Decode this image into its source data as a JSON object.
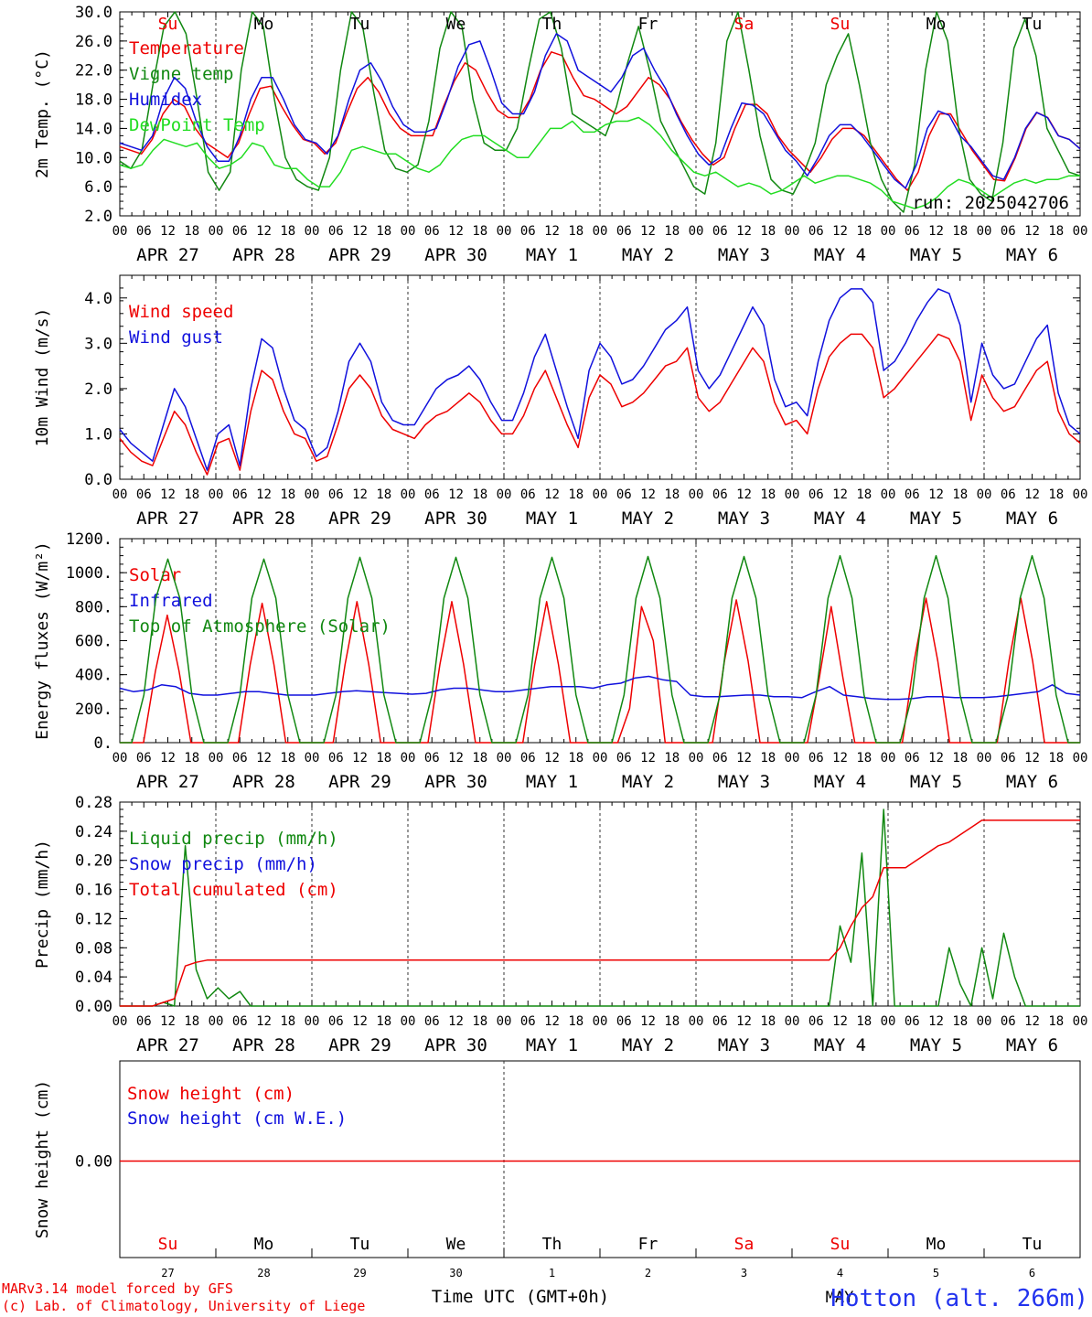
{
  "colors": {
    "red": "#ee0000",
    "green": "#118811",
    "blue": "#1111dd",
    "lime": "#22dd22",
    "grey": "#555555"
  },
  "chart_data": [
    {
      "type": "line",
      "id": "temp",
      "ylabel": "2m Temp. (°C)",
      "ylim": [
        2,
        30
      ],
      "yticks": [
        "2.0",
        "6.0",
        "10.0",
        "14.0",
        "18.0",
        "22.0",
        "26.0",
        "30.0"
      ],
      "run_label": "run: 2025042706",
      "series": [
        {
          "name": "Temperature",
          "color": "red",
          "values": [
            11.5,
            11,
            10.5,
            12.5,
            16,
            18,
            17,
            14,
            12,
            11,
            10,
            12,
            16,
            19.5,
            19.8,
            17,
            14.5,
            12.5,
            12,
            10.5,
            12,
            16,
            19.5,
            21,
            19,
            16,
            14,
            13,
            13,
            13,
            17,
            20.5,
            23,
            22,
            19,
            16.5,
            15.5,
            15.5,
            18,
            22,
            24.5,
            24,
            21,
            18.5,
            18,
            17,
            16,
            17,
            19,
            21,
            20,
            18,
            15,
            12.5,
            10.5,
            9,
            10,
            14,
            17.3,
            17.3,
            16,
            13,
            11,
            9.5,
            8,
            10,
            12.5,
            14,
            14,
            13,
            11,
            9,
            7,
            5.5,
            8,
            13,
            16,
            16,
            13.5,
            11,
            9,
            7,
            6.8,
            10,
            14,
            16.2,
            15.5,
            13,
            12.5,
            11.2
          ]
        },
        {
          "name": "Vigne temp",
          "color": "green",
          "values": [
            9.5,
            8.5,
            11,
            20,
            28,
            30,
            27,
            18,
            8,
            5.5,
            8,
            22,
            30,
            28,
            18,
            10,
            7,
            6,
            5.5,
            10,
            22,
            30,
            28,
            19,
            11,
            8.5,
            8,
            9,
            15,
            25,
            30,
            28,
            18,
            12,
            11,
            11,
            14,
            22,
            29,
            30,
            25,
            16,
            15,
            14,
            13,
            17,
            23,
            28,
            22,
            15,
            12,
            9,
            6,
            5,
            12,
            26,
            30,
            22,
            13,
            7,
            5.5,
            5,
            8,
            12,
            20,
            24,
            27,
            20,
            12,
            7,
            4,
            2.5,
            9,
            22,
            30,
            26,
            14,
            7,
            5,
            4,
            12,
            25,
            29,
            24,
            14,
            11,
            8,
            7.5
          ]
        },
        {
          "name": "Humidex",
          "color": "blue",
          "values": [
            12,
            11.5,
            11,
            13,
            18,
            21,
            19.5,
            15,
            11.5,
            9.5,
            9.5,
            13,
            18,
            21,
            21,
            18,
            14.5,
            12.5,
            12,
            10.5,
            13,
            18,
            22,
            23,
            20.5,
            17,
            14.5,
            13.5,
            13.5,
            14,
            18,
            22.5,
            25.5,
            26,
            22,
            17.5,
            16,
            16,
            19,
            24,
            27,
            26,
            22,
            21,
            20,
            19,
            21,
            24,
            25,
            22,
            19.5,
            16,
            13,
            10.5,
            9,
            10,
            14,
            17.5,
            17.2,
            16,
            13.5,
            11,
            9.5,
            7.5,
            10,
            13,
            14.5,
            14.5,
            13,
            11,
            9,
            7,
            5.8,
            9,
            14,
            16.4,
            15.8,
            13,
            11.5,
            9.5,
            7.5,
            7,
            10,
            14,
            16.2,
            15.5,
            13,
            12.5,
            11.2
          ]
        },
        {
          "name": "DewPoint Temp",
          "color": "lime",
          "values": [
            9,
            8.5,
            9,
            11,
            12.5,
            12,
            11.5,
            12,
            10,
            8.5,
            9,
            10,
            12,
            11.5,
            9,
            8.5,
            8.5,
            7,
            6,
            6,
            8,
            11,
            11.5,
            11,
            10.5,
            10.5,
            9.5,
            8.5,
            8,
            9,
            11,
            12.5,
            13,
            13,
            12,
            11,
            10,
            10,
            12,
            14,
            14,
            15,
            13.5,
            13.5,
            14.5,
            15,
            15,
            15.5,
            14.5,
            13,
            11,
            9.5,
            8,
            7.5,
            8,
            7,
            6,
            6.5,
            6,
            5,
            5.5,
            6.5,
            7.5,
            6.5,
            7,
            7.5,
            7.5,
            7,
            6.5,
            5.5,
            4,
            3.5,
            3,
            3.5,
            4.5,
            6,
            7,
            6.5,
            5.5,
            4.5,
            5.5,
            6.5,
            7,
            6.5,
            7,
            7,
            7.5,
            7.5
          ]
        }
      ]
    },
    {
      "type": "line",
      "id": "wind",
      "ylabel": "10m Wind (m/s)",
      "ylim": [
        0,
        4.5
      ],
      "yticks": [
        "0.0",
        "1.0",
        "2.0",
        "3.0",
        "4.0"
      ],
      "series": [
        {
          "name": "Wind speed",
          "color": "red",
          "values": [
            0.9,
            0.6,
            0.4,
            0.3,
            0.9,
            1.5,
            1.2,
            0.6,
            0.1,
            0.8,
            0.9,
            0.2,
            1.5,
            2.4,
            2.2,
            1.5,
            1.0,
            0.9,
            0.4,
            0.5,
            1.2,
            2.0,
            2.3,
            2.0,
            1.4,
            1.1,
            1.0,
            0.9,
            1.2,
            1.4,
            1.5,
            1.7,
            1.9,
            1.7,
            1.3,
            1.0,
            1.0,
            1.4,
            2.0,
            2.4,
            1.8,
            1.2,
            0.7,
            1.8,
            2.3,
            2.1,
            1.6,
            1.7,
            1.9,
            2.2,
            2.5,
            2.6,
            2.9,
            1.8,
            1.5,
            1.7,
            2.1,
            2.5,
            2.9,
            2.6,
            1.7,
            1.2,
            1.3,
            1.0,
            2.0,
            2.7,
            3.0,
            3.2,
            3.2,
            2.9,
            1.8,
            2.0,
            2.3,
            2.6,
            2.9,
            3.2,
            3.1,
            2.6,
            1.3,
            2.3,
            1.8,
            1.5,
            1.6,
            2.0,
            2.4,
            2.6,
            1.5,
            1.0,
            0.8
          ]
        },
        {
          "name": "Wind gust",
          "color": "blue",
          "values": [
            1.1,
            0.8,
            0.6,
            0.4,
            1.2,
            2.0,
            1.6,
            0.9,
            0.2,
            1.0,
            1.2,
            0.3,
            2.0,
            3.1,
            2.9,
            2.0,
            1.3,
            1.1,
            0.5,
            0.7,
            1.5,
            2.6,
            3.0,
            2.6,
            1.7,
            1.3,
            1.2,
            1.2,
            1.6,
            2.0,
            2.2,
            2.3,
            2.5,
            2.2,
            1.7,
            1.3,
            1.3,
            1.9,
            2.7,
            3.2,
            2.4,
            1.6,
            0.9,
            2.4,
            3.0,
            2.7,
            2.1,
            2.2,
            2.5,
            2.9,
            3.3,
            3.5,
            3.8,
            2.4,
            2.0,
            2.3,
            2.8,
            3.3,
            3.8,
            3.4,
            2.2,
            1.6,
            1.7,
            1.4,
            2.6,
            3.5,
            4.0,
            4.2,
            4.2,
            3.9,
            2.4,
            2.6,
            3.0,
            3.5,
            3.9,
            4.2,
            4.1,
            3.4,
            1.7,
            3.0,
            2.3,
            2.0,
            2.1,
            2.6,
            3.1,
            3.4,
            1.9,
            1.2,
            1.0
          ]
        }
      ]
    },
    {
      "type": "line",
      "id": "energy",
      "ylabel": "Energy fluxes (W/m²)",
      "ylim": [
        0,
        1200
      ],
      "yticks": [
        "0.",
        "200.",
        "400.",
        "600.",
        "800.",
        "1000.",
        "1200."
      ],
      "series": [
        {
          "name": "Solar",
          "color": "red",
          "values": [
            0,
            0,
            0,
            420,
            750,
            420,
            0,
            0,
            0,
            0,
            0,
            460,
            820,
            460,
            0,
            0,
            0,
            0,
            0,
            460,
            830,
            460,
            0,
            0,
            0,
            0,
            0,
            460,
            830,
            460,
            0,
            0,
            0,
            0,
            0,
            460,
            830,
            460,
            0,
            0,
            0,
            0,
            0,
            200,
            800,
            600,
            0,
            0,
            0,
            0,
            0,
            480,
            840,
            480,
            0,
            0,
            0,
            0,
            0,
            380,
            800,
            380,
            0,
            0,
            0,
            0,
            0,
            480,
            850,
            480,
            0,
            0,
            0,
            0,
            0,
            480,
            850,
            480,
            0,
            0,
            0,
            0
          ]
        },
        {
          "name": "Infrared",
          "color": "blue",
          "values": [
            320,
            300,
            310,
            340,
            330,
            290,
            280,
            280,
            290,
            300,
            300,
            290,
            280,
            280,
            280,
            290,
            300,
            305,
            300,
            295,
            290,
            285,
            290,
            310,
            320,
            320,
            310,
            300,
            300,
            310,
            320,
            330,
            330,
            330,
            320,
            340,
            350,
            380,
            390,
            370,
            360,
            280,
            270,
            270,
            275,
            280,
            280,
            270,
            270,
            265,
            300,
            330,
            280,
            270,
            260,
            255,
            255,
            260,
            270,
            270,
            265,
            265,
            265,
            270,
            280,
            290,
            300,
            340,
            290,
            280
          ]
        },
        {
          "name": "Top of Atmosphere (Solar)",
          "color": "green",
          "values": [
            0,
            0,
            280,
            850,
            1080,
            850,
            280,
            0,
            0,
            0,
            280,
            850,
            1080,
            850,
            280,
            0,
            0,
            0,
            280,
            850,
            1090,
            850,
            280,
            0,
            0,
            0,
            280,
            850,
            1090,
            850,
            280,
            0,
            0,
            0,
            280,
            850,
            1090,
            850,
            280,
            0,
            0,
            0,
            280,
            850,
            1095,
            850,
            280,
            0,
            0,
            0,
            280,
            850,
            1095,
            850,
            280,
            0,
            0,
            0,
            280,
            850,
            1100,
            850,
            280,
            0,
            0,
            0,
            280,
            850,
            1100,
            850,
            280,
            0,
            0,
            0,
            280,
            850,
            1100,
            850,
            280,
            0,
            0
          ]
        }
      ]
    },
    {
      "type": "line",
      "id": "precip",
      "ylabel": "Precip (mm/h)",
      "ylim": [
        0,
        0.28
      ],
      "yticks": [
        "0.00",
        "0.04",
        "0.08",
        "0.12",
        "0.16",
        "0.20",
        "0.24",
        "0.28"
      ],
      "series": [
        {
          "name": "Liquid precip (mm/h)",
          "color": "green",
          "values": [
            0,
            0,
            0,
            0,
            0.005,
            0,
            0.22,
            0.05,
            0.01,
            0.025,
            0.01,
            0.02,
            0,
            0,
            0,
            0,
            0,
            0,
            0,
            0,
            0,
            0,
            0,
            0,
            0,
            0,
            0,
            0,
            0,
            0,
            0,
            0,
            0,
            0,
            0,
            0,
            0,
            0,
            0,
            0,
            0,
            0,
            0,
            0,
            0,
            0,
            0,
            0,
            0,
            0,
            0,
            0,
            0,
            0,
            0,
            0,
            0,
            0,
            0,
            0,
            0,
            0,
            0,
            0,
            0,
            0,
            0.11,
            0.06,
            0.21,
            0,
            0.27,
            0,
            0,
            0,
            0,
            0,
            0.08,
            0.03,
            0,
            0.08,
            0.01,
            0.1,
            0.04,
            0,
            0,
            0,
            0,
            0,
            0
          ]
        },
        {
          "name": "Snow precip (mm/h)",
          "color": "blue",
          "values": []
        },
        {
          "name": "Total cumulated (cm)",
          "color": "red",
          "values": [
            0,
            0,
            0,
            0,
            0.005,
            0.01,
            0.055,
            0.06,
            0.063,
            0.063,
            0.063,
            0.063,
            0.063,
            0.063,
            0.063,
            0.063,
            0.063,
            0.063,
            0.063,
            0.063,
            0.063,
            0.063,
            0.063,
            0.063,
            0.063,
            0.063,
            0.063,
            0.063,
            0.063,
            0.063,
            0.063,
            0.063,
            0.063,
            0.063,
            0.063,
            0.063,
            0.063,
            0.063,
            0.063,
            0.063,
            0.063,
            0.063,
            0.063,
            0.063,
            0.063,
            0.063,
            0.063,
            0.063,
            0.063,
            0.063,
            0.063,
            0.063,
            0.063,
            0.063,
            0.063,
            0.063,
            0.063,
            0.063,
            0.063,
            0.063,
            0.063,
            0.063,
            0.063,
            0.063,
            0.063,
            0.063,
            0.08,
            0.11,
            0.135,
            0.15,
            0.19,
            0.19,
            0.19,
            0.2,
            0.21,
            0.22,
            0.225,
            0.235,
            0.245,
            0.255,
            0.255,
            0.255,
            0.255,
            0.255,
            0.255,
            0.255,
            0.255,
            0.255,
            0.255
          ]
        }
      ]
    },
    {
      "type": "line",
      "id": "snow",
      "ylabel": "Snow height (cm)",
      "yticks": [
        "0.00"
      ],
      "series": [
        {
          "name": "Snow height (cm)",
          "color": "red",
          "values": [
            0,
            0
          ]
        },
        {
          "name": "Snow height (cm W.E.)",
          "color": "blue",
          "values": []
        }
      ]
    }
  ],
  "x_axis": {
    "hour_ticks": [
      "00",
      "06",
      "12",
      "18"
    ],
    "date_labels": [
      "APR 27",
      "APR 28",
      "APR 29",
      "APR 30",
      "MAY  1",
      "MAY  2",
      "MAY  3",
      "MAY  4",
      "MAY  5",
      "MAY  6"
    ],
    "day_names": [
      "Su",
      "Mo",
      "Tu",
      "We",
      "Th",
      "Fr",
      "Sa",
      "Su",
      "Mo",
      "Tu"
    ],
    "day_name_colors": [
      "red",
      "black",
      "black",
      "black",
      "black",
      "black",
      "red",
      "red",
      "black",
      "black"
    ],
    "day_numbers": [
      "27",
      "28",
      "29",
      "30",
      "1",
      "2",
      "3",
      "4",
      "5",
      "6"
    ],
    "bottom_month": "MAY",
    "bottom_label": "Time UTC (GMT+0h)",
    "last_tick": "00"
  },
  "footer": {
    "credit_line1": "MARv3.14 model forced by GFS",
    "credit_line2": "(c) Lab. of Climatology, University of Liege",
    "station": "Hotton (alt. 266m)"
  }
}
